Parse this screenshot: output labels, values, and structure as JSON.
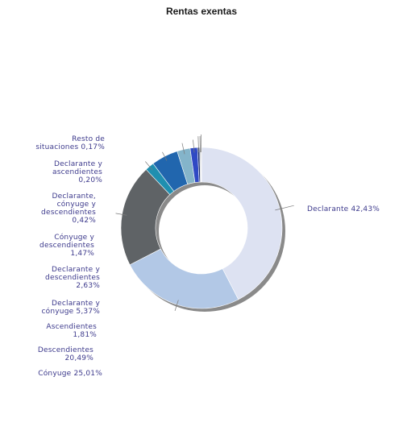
{
  "chart_data": {
    "type": "pie",
    "title": "Rentas exentas",
    "slices": [
      {
        "label": "Declarante",
        "value": 42.43,
        "value_text": "42,43%",
        "color": "#dde2f2"
      },
      {
        "label": "Cónyuge",
        "value": 25.01,
        "value_text": "25,01%",
        "color": "#b2c8e6"
      },
      {
        "label": "Descendientes",
        "value": 20.49,
        "value_text": "20,49%",
        "color": "#5f6366"
      },
      {
        "label": "Ascendientes",
        "value": 1.81,
        "value_text": "1,81%",
        "color": "#1f8fb0"
      },
      {
        "label": "Declarante y cónyuge",
        "value": 5.37,
        "value_text": "5,37%",
        "color": "#2166ae"
      },
      {
        "label": "Declarante y descendientes",
        "value": 2.63,
        "value_text": "2,63%",
        "color": "#84b4ca"
      },
      {
        "label": "Cónyuge y descendientes",
        "value": 1.47,
        "value_text": "1,47%",
        "color": "#2f49c4"
      },
      {
        "label": "Declarante, cónyuge y descendientes",
        "value": 0.42,
        "value_text": "0,42%",
        "color": "#1b2f6e"
      },
      {
        "label": "Declarante y ascendientes",
        "value": 0.2,
        "value_text": "0,20%",
        "color": "#9aa0a6"
      },
      {
        "label": "Resto de situaciones",
        "value": 0.17,
        "value_text": "0,17%",
        "color": "#c9ccd0"
      }
    ],
    "label_lines": [
      [
        "Declarante 42,43%"
      ],
      [
        "Cónyuge 25,01%"
      ],
      [
        "Descendientes",
        "20,49%"
      ],
      [
        "Ascendientes",
        "1,81%"
      ],
      [
        "Declarante y",
        "cónyuge 5,37%"
      ],
      [
        "Declarante y",
        "descendientes",
        "2,63%"
      ],
      [
        "Cónyuge y",
        "descendientes",
        "1,47%"
      ],
      [
        "Declarante,",
        "cónyuge y",
        "descendientes",
        "0,42%"
      ],
      [
        "Declarante y",
        "ascendientes",
        "0,20%"
      ],
      [
        "Resto de",
        "situaciones 0,17%"
      ]
    ],
    "legend": "none",
    "donut": true
  }
}
